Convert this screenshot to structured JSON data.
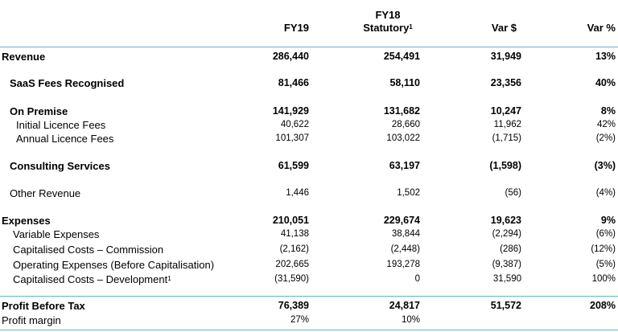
{
  "header": {
    "fy19": "FY19",
    "fy18_line1": "FY18",
    "fy18_line2": "Statutory",
    "fy18_sup": "1",
    "var_dollar": "Var $",
    "var_pct": "Var %"
  },
  "rows": [
    {
      "label": "Revenue",
      "fy19": "286,440",
      "fy18": "254,491",
      "var": "31,949",
      "pct": "13%"
    },
    {
      "label": "SaaS Fees Recognised",
      "fy19": "81,466",
      "fy18": "58,110",
      "var": "23,356",
      "pct": "40%"
    },
    {
      "label": "On Premise",
      "fy19": "141,929",
      "fy18": "131,682",
      "var": "10,247",
      "pct": "8%"
    },
    {
      "label": "Initial Licence Fees",
      "fy19": "40,622",
      "fy18": "28,660",
      "var": "11,962",
      "pct": "42%"
    },
    {
      "label": "Annual Licence Fees",
      "fy19": "101,307",
      "fy18": "103,022",
      "var": "(1,715)",
      "pct": "(2%)"
    },
    {
      "label": "Consulting Services",
      "fy19": "61,599",
      "fy18": "63,197",
      "var": "(1,598)",
      "pct": "(3%)"
    },
    {
      "label": "Other Revenue",
      "fy19": "1,446",
      "fy18": "1,502",
      "var": "(56)",
      "pct": "(4%)"
    },
    {
      "label": "Expenses",
      "fy19": "210,051",
      "fy18": "229,674",
      "var": "19,623",
      "pct": "9%"
    },
    {
      "label": "Variable Expenses",
      "fy19": "41,138",
      "fy18": "38,844",
      "var": "(2,294)",
      "pct": "(6%)"
    },
    {
      "label": "Capitalised Costs – Commission",
      "fy19": "(2,162)",
      "fy18": "(2,448)",
      "var": "(286)",
      "pct": "(12%)"
    },
    {
      "label": "Operating Expenses (Before Capitalisation)",
      "fy19": "202,665",
      "fy18": "193,278",
      "var": "(9,387)",
      "pct": "(5%)"
    },
    {
      "label": "Capitalised Costs – Development",
      "sup": "1",
      "fy19": "(31,590)",
      "fy18": "0",
      "var": "31,590",
      "pct": "100%"
    },
    {
      "label": "Profit Before Tax",
      "fy19": "76,389",
      "fy18": "24,817",
      "var": "51,572",
      "pct": "208%"
    },
    {
      "label": "Profit margin",
      "fy19": "27%",
      "fy18": "10%",
      "var": "",
      "pct": ""
    }
  ]
}
